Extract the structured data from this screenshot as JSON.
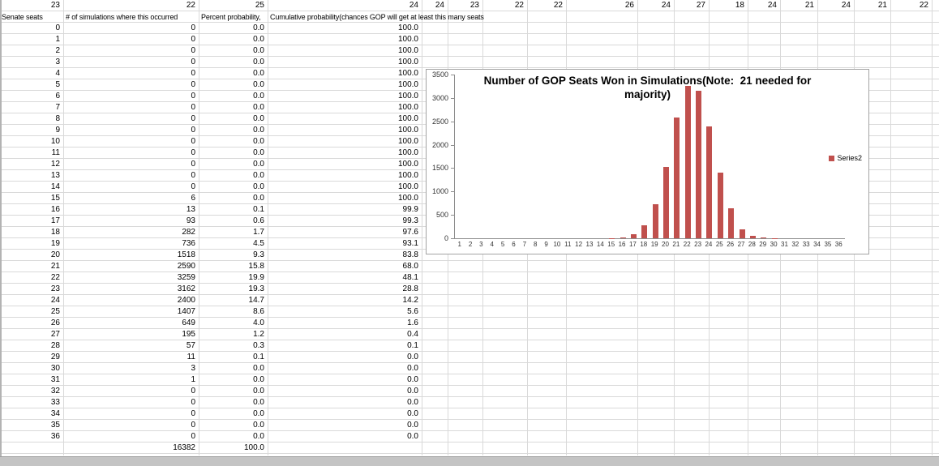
{
  "sheet": {
    "top_row_values": [
      "23",
      "22",
      "25",
      "24",
      "24",
      "23",
      "22",
      "22",
      "26",
      "24",
      "27",
      "18",
      "24",
      "21",
      "24",
      "21",
      "22"
    ],
    "headers": {
      "seats": "Senate seats",
      "simulations": "# of simulations where this occurred",
      "percent": "Percent probability,",
      "cumulative": "Cumulative probability(chances GOP will get at least this many seats"
    },
    "rows": [
      [
        "0",
        "0",
        "0.0",
        "100.0"
      ],
      [
        "1",
        "0",
        "0.0",
        "100.0"
      ],
      [
        "2",
        "0",
        "0.0",
        "100.0"
      ],
      [
        "3",
        "0",
        "0.0",
        "100.0"
      ],
      [
        "4",
        "0",
        "0.0",
        "100.0"
      ],
      [
        "5",
        "0",
        "0.0",
        "100.0"
      ],
      [
        "6",
        "0",
        "0.0",
        "100.0"
      ],
      [
        "7",
        "0",
        "0.0",
        "100.0"
      ],
      [
        "8",
        "0",
        "0.0",
        "100.0"
      ],
      [
        "9",
        "0",
        "0.0",
        "100.0"
      ],
      [
        "10",
        "0",
        "0.0",
        "100.0"
      ],
      [
        "11",
        "0",
        "0.0",
        "100.0"
      ],
      [
        "12",
        "0",
        "0.0",
        "100.0"
      ],
      [
        "13",
        "0",
        "0.0",
        "100.0"
      ],
      [
        "14",
        "0",
        "0.0",
        "100.0"
      ],
      [
        "15",
        "6",
        "0.0",
        "100.0"
      ],
      [
        "16",
        "13",
        "0.1",
        "99.9"
      ],
      [
        "17",
        "93",
        "0.6",
        "99.3"
      ],
      [
        "18",
        "282",
        "1.7",
        "97.6"
      ],
      [
        "19",
        "736",
        "4.5",
        "93.1"
      ],
      [
        "20",
        "1518",
        "9.3",
        "83.8"
      ],
      [
        "21",
        "2590",
        "15.8",
        "68.0"
      ],
      [
        "22",
        "3259",
        "19.9",
        "48.1"
      ],
      [
        "23",
        "3162",
        "19.3",
        "28.8"
      ],
      [
        "24",
        "2400",
        "14.7",
        "14.2"
      ],
      [
        "25",
        "1407",
        "8.6",
        "5.6"
      ],
      [
        "26",
        "649",
        "4.0",
        "1.6"
      ],
      [
        "27",
        "195",
        "1.2",
        "0.4"
      ],
      [
        "28",
        "57",
        "0.3",
        "0.1"
      ],
      [
        "29",
        "11",
        "0.1",
        "0.0"
      ],
      [
        "30",
        "3",
        "0.0",
        "0.0"
      ],
      [
        "31",
        "1",
        "0.0",
        "0.0"
      ],
      [
        "32",
        "0",
        "0.0",
        "0.0"
      ],
      [
        "33",
        "0",
        "0.0",
        "0.0"
      ],
      [
        "34",
        "0",
        "0.0",
        "0.0"
      ],
      [
        "35",
        "0",
        "0.0",
        "0.0"
      ],
      [
        "36",
        "0",
        "0.0",
        "0.0"
      ]
    ],
    "total_row": {
      "simulations": "16382",
      "percent": "100.0"
    }
  },
  "chart_data": {
    "type": "bar",
    "title": "Number of GOP Seats Won in Simulations(Note:  21 needed for majority)",
    "legend": [
      "Series2"
    ],
    "legend_position": "right",
    "categories": [
      1,
      2,
      3,
      4,
      5,
      6,
      7,
      8,
      9,
      10,
      11,
      12,
      13,
      14,
      15,
      16,
      17,
      18,
      19,
      20,
      21,
      22,
      23,
      24,
      25,
      26,
      27,
      28,
      29,
      30,
      31,
      32,
      33,
      34,
      35,
      36
    ],
    "values": [
      0,
      0,
      0,
      0,
      0,
      0,
      0,
      0,
      0,
      0,
      0,
      0,
      0,
      0,
      6,
      13,
      93,
      282,
      736,
      1518,
      2590,
      3259,
      3162,
      2400,
      1407,
      649,
      195,
      57,
      11,
      3,
      1,
      0,
      0,
      0,
      0,
      0
    ],
    "xlabel": "",
    "ylabel": "",
    "ylim": [
      0,
      3500
    ],
    "yticks": [
      0,
      500,
      1000,
      1500,
      2000,
      2500,
      3000,
      3500
    ],
    "bar_color": "#c0504d",
    "grid": false
  }
}
